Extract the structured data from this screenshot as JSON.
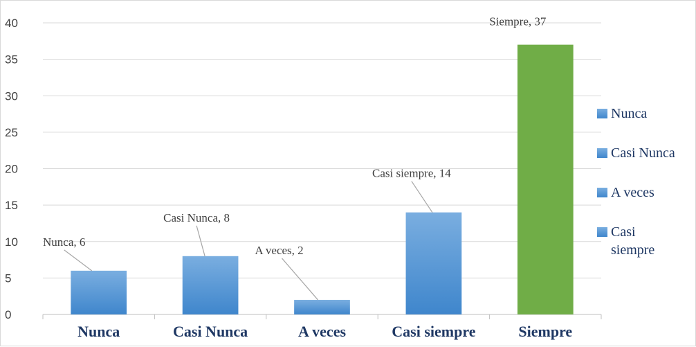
{
  "chart_data": {
    "type": "bar",
    "categories": [
      "Nunca",
      "Casi Nunca",
      "A veces",
      "Casi siempre",
      "Siempre"
    ],
    "values": [
      6,
      8,
      2,
      14,
      37
    ],
    "data_labels": [
      "Nunca, 6",
      "Casi Nunca, 8",
      "A veces, 2",
      "Casi siempre, 14",
      "Siempre, 37"
    ],
    "bar_colors": [
      "#5b9bd5",
      "#5b9bd5",
      "#5b9bd5",
      "#5b9bd5",
      "#70ad47"
    ],
    "ylim": [
      0,
      40
    ],
    "yticks": [
      0,
      5,
      10,
      15,
      20,
      25,
      30,
      35,
      40
    ],
    "grid": true,
    "title": "",
    "xlabel": "",
    "ylabel": "",
    "legend": {
      "position": "right",
      "entries": [
        {
          "label_lines": [
            "Nunca"
          ],
          "color": "#5b9bd5"
        },
        {
          "label_lines": [
            "Casi Nunca"
          ],
          "color": "#5b9bd5"
        },
        {
          "label_lines": [
            "A veces"
          ],
          "color": "#5b9bd5"
        },
        {
          "label_lines": [
            "Casi",
            "siempre"
          ],
          "color": "#5b9bd5"
        }
      ]
    }
  }
}
